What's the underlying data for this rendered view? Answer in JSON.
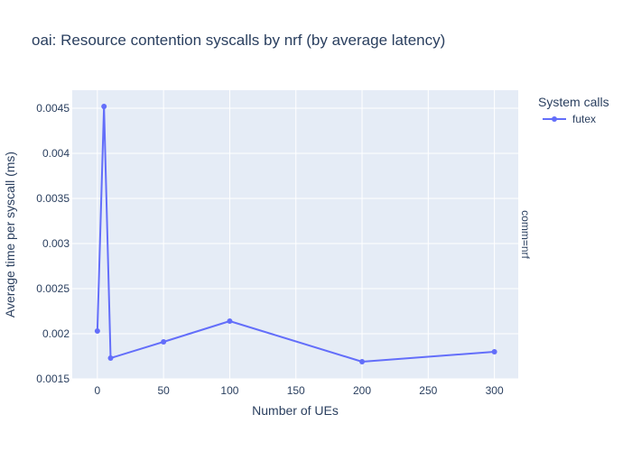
{
  "chart_data": {
    "type": "line",
    "title": "oai: Resource contention syscalls by nrf (by average latency)",
    "xlabel": "Number of UEs",
    "ylabel": "Average time per syscall (ms)",
    "legend_title": "System calls",
    "legend_position": "top-right",
    "facet_label": "comm=nrf",
    "xlim": [
      -19,
      318
    ],
    "ylim": [
      0.0015,
      0.0047
    ],
    "x_ticks": [
      0,
      50,
      100,
      150,
      200,
      250,
      300
    ],
    "x_tick_labels": [
      "0",
      "50",
      "100",
      "150",
      "200",
      "250",
      "300"
    ],
    "y_ticks": [
      0.0015,
      0.002,
      0.0025,
      0.003,
      0.0035,
      0.004,
      0.0045
    ],
    "y_tick_labels": [
      "0.0015",
      "0.002",
      "0.0025",
      "0.003",
      "0.0035",
      "0.004",
      "0.0045"
    ],
    "grid": true,
    "series": [
      {
        "name": "futex",
        "color": "#636efa",
        "points": [
          {
            "x": 0,
            "y": 0.00203
          },
          {
            "x": 5,
            "y": 0.00452
          },
          {
            "x": 10,
            "y": 0.00173
          },
          {
            "x": 50,
            "y": 0.00191
          },
          {
            "x": 100,
            "y": 0.00214
          },
          {
            "x": 200,
            "y": 0.00169
          },
          {
            "x": 300,
            "y": 0.0018
          }
        ]
      }
    ]
  },
  "colors": {
    "plot_background": "#e5ecf6",
    "grid": "#ffffff",
    "text": "#2a3f5f",
    "series": "#636efa"
  }
}
